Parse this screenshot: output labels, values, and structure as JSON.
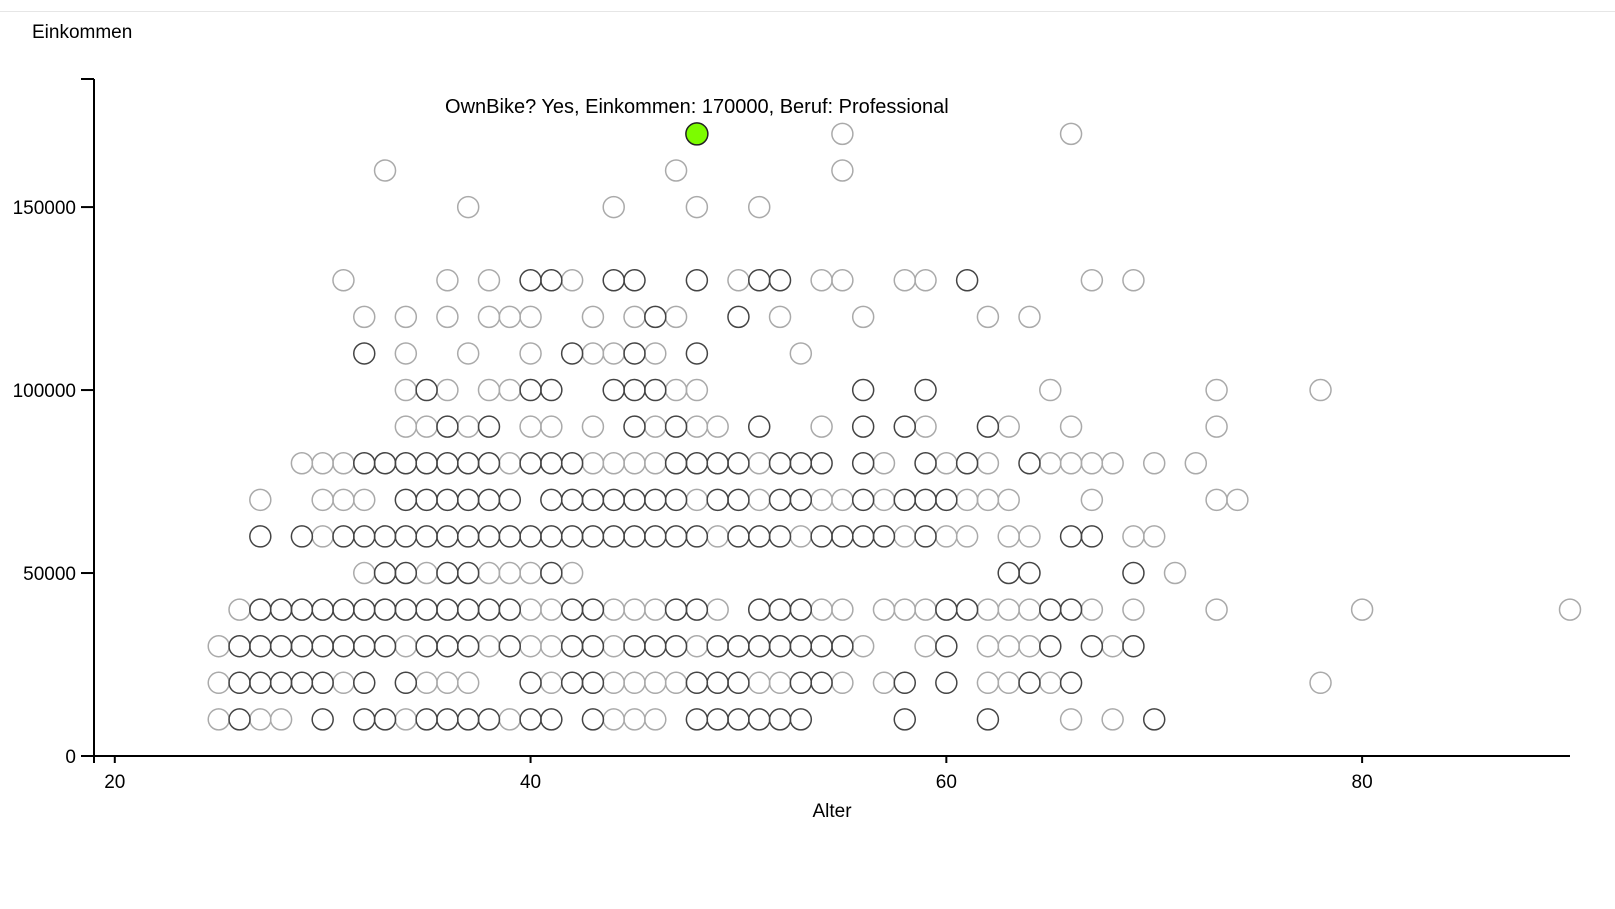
{
  "chart_data": {
    "type": "scatter",
    "xlabel": "Alter",
    "ylabel": "Einkommen",
    "xlim": [
      19,
      90
    ],
    "ylim": [
      0,
      185000
    ],
    "x_ticks": [
      "20",
      "40",
      "60",
      "80"
    ],
    "y_ticks": [
      "0",
      "50000",
      "100000",
      "150000"
    ],
    "tooltip": "OwnBike? Yes, Einkommen: 170000, Beruf: Professional",
    "highlight": {
      "x": 48,
      "y": 170000,
      "color": "#7cfc00"
    },
    "marker_color_light": "#aaaaaa",
    "marker_color_dark": "#444444",
    "groups": [
      {
        "y": 170000,
        "dark": [],
        "light": [
          55,
          66
        ]
      },
      {
        "y": 160000,
        "dark": [],
        "light": [
          33,
          47,
          55
        ]
      },
      {
        "y": 150000,
        "dark": [],
        "light": [
          37,
          44,
          48,
          51
        ]
      },
      {
        "y": 130000,
        "dark": [
          40,
          41,
          44,
          45,
          48,
          51,
          52,
          61
        ],
        "light": [
          31,
          36,
          38,
          42,
          50,
          54,
          55,
          58,
          59,
          67,
          69
        ]
      },
      {
        "y": 120000,
        "dark": [
          46,
          50
        ],
        "light": [
          32,
          34,
          36,
          38,
          39,
          40,
          43,
          45,
          47,
          52,
          56,
          62,
          64
        ]
      },
      {
        "y": 110000,
        "dark": [
          32,
          42,
          45,
          48
        ],
        "light": [
          34,
          37,
          40,
          43,
          44,
          46,
          53
        ]
      },
      {
        "y": 100000,
        "dark": [
          35,
          40,
          41,
          44,
          45,
          46,
          56,
          59
        ],
        "light": [
          34,
          36,
          38,
          39,
          47,
          48,
          65,
          73,
          78
        ]
      },
      {
        "y": 90000,
        "dark": [
          36,
          38,
          45,
          47,
          51,
          56,
          58,
          62
        ],
        "light": [
          34,
          35,
          37,
          40,
          41,
          43,
          46,
          48,
          49,
          54,
          59,
          63,
          66,
          73
        ]
      },
      {
        "y": 80000,
        "dark": [
          32,
          33,
          34,
          35,
          36,
          37,
          38,
          40,
          41,
          42,
          47,
          48,
          49,
          50,
          52,
          53,
          54,
          56,
          59,
          61,
          64
        ],
        "light": [
          29,
          30,
          31,
          39,
          43,
          44,
          45,
          46,
          51,
          57,
          60,
          62,
          65,
          66,
          67,
          68,
          70,
          72
        ]
      },
      {
        "y": 70000,
        "dark": [
          34,
          35,
          36,
          37,
          38,
          39,
          41,
          42,
          43,
          44,
          45,
          46,
          47,
          49,
          50,
          52,
          53,
          56,
          58,
          59,
          60
        ],
        "light": [
          27,
          30,
          31,
          32,
          48,
          51,
          54,
          55,
          57,
          61,
          62,
          63,
          67,
          73,
          74
        ]
      },
      {
        "y": 60000,
        "dark": [
          27,
          29,
          31,
          32,
          33,
          34,
          35,
          36,
          37,
          38,
          39,
          40,
          41,
          42,
          43,
          44,
          45,
          46,
          47,
          48,
          50,
          51,
          52,
          54,
          55,
          56,
          57,
          59,
          66,
          67
        ],
        "light": [
          30,
          49,
          53,
          58,
          60,
          61,
          63,
          64,
          69,
          70
        ]
      },
      {
        "y": 50000,
        "dark": [
          33,
          34,
          36,
          37,
          41,
          63,
          64,
          69
        ],
        "light": [
          32,
          35,
          38,
          39,
          40,
          42,
          71
        ]
      },
      {
        "y": 40000,
        "dark": [
          27,
          28,
          29,
          30,
          31,
          32,
          33,
          34,
          35,
          36,
          37,
          38,
          39,
          42,
          43,
          47,
          48,
          51,
          52,
          53,
          60,
          61,
          65,
          66
        ],
        "light": [
          26,
          40,
          41,
          44,
          45,
          46,
          49,
          54,
          55,
          57,
          58,
          59,
          62,
          63,
          64,
          67,
          69,
          73,
          80,
          90
        ]
      },
      {
        "y": 30000,
        "dark": [
          26,
          27,
          28,
          29,
          30,
          31,
          32,
          33,
          35,
          36,
          37,
          39,
          42,
          43,
          45,
          46,
          47,
          49,
          50,
          51,
          52,
          53,
          54,
          55,
          60,
          65,
          67,
          69
        ],
        "light": [
          25,
          34,
          38,
          40,
          41,
          44,
          48,
          56,
          59,
          62,
          63,
          64,
          68
        ]
      },
      {
        "y": 20000,
        "dark": [
          26,
          27,
          28,
          29,
          30,
          32,
          34,
          40,
          42,
          43,
          48,
          49,
          50,
          53,
          54,
          58,
          60,
          64,
          66
        ],
        "light": [
          25,
          31,
          35,
          36,
          37,
          41,
          44,
          45,
          46,
          47,
          51,
          52,
          55,
          57,
          62,
          63,
          65,
          78
        ]
      },
      {
        "y": 10000,
        "dark": [
          26,
          30,
          32,
          33,
          35,
          36,
          37,
          38,
          40,
          41,
          43,
          48,
          49,
          50,
          51,
          52,
          53,
          58,
          62,
          70
        ],
        "light": [
          25,
          27,
          28,
          34,
          39,
          44,
          45,
          46,
          66,
          68
        ]
      }
    ]
  }
}
